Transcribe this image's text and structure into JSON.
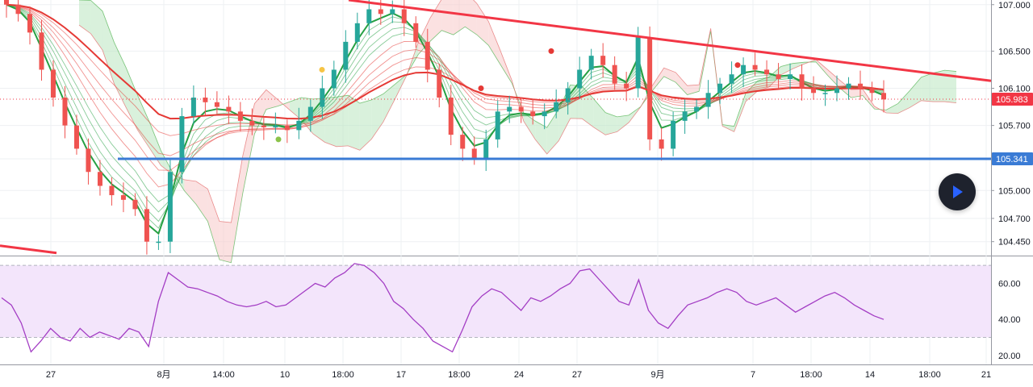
{
  "colors": {
    "up_candle": "#26a69a",
    "down_candle": "#ef5350",
    "ribbon_green": "#26a043",
    "ribbon_red": "#e53935",
    "trendline": "#f23645",
    "support_line": "#3a7bd5",
    "cloud_green": "#b9e6bf",
    "cloud_red": "#f8c9c9",
    "rsi_line": "#a33dc4",
    "rsi_band": "#f3e5fb",
    "price_tag": "#f23645",
    "support_tag": "#3a7bd5",
    "axis_text": "#131722",
    "grid": "#eef0f3"
  },
  "price_axis": {
    "ticks": [
      "107.000",
      "106.500",
      "106.100",
      "105.700",
      "105.341",
      "105.000",
      "104.700",
      "104.450"
    ],
    "current_price_label": "105.983",
    "support_label": "105.341"
  },
  "rsi_axis": {
    "ticks": [
      "60.00",
      "40.00",
      "20.00"
    ],
    "upper_band": 70,
    "lower_band": 30
  },
  "time_axis": {
    "labels": [
      "27",
      "8月",
      "14:00",
      "10",
      "18:00",
      "17",
      "18:00",
      "24",
      "27",
      "9月",
      "7",
      "18:00",
      "14",
      "18:00",
      "21"
    ]
  },
  "play_button": {
    "icon": "play-icon"
  },
  "chart_data": [
    {
      "type": "line",
      "subtype": "candlestick-approximation",
      "y_axis_range": [
        104.3,
        107.05
      ],
      "series": [
        {
          "values": [
            107.0,
            106.9,
            106.7,
            106.3,
            106.0,
            105.7,
            105.45,
            105.2,
            105.05,
            104.95,
            104.9,
            104.8,
            104.45,
            104.45,
            105.2,
            105.8,
            106.0,
            105.95,
            105.9,
            105.85,
            105.75,
            105.7,
            105.68,
            105.7,
            105.65,
            105.75,
            105.9,
            106.1,
            106.3,
            106.6,
            106.8,
            106.95,
            106.9,
            106.95,
            106.8,
            106.6,
            106.3,
            106.0,
            105.6,
            105.45,
            105.35,
            105.55,
            105.85,
            105.9,
            105.85,
            105.8,
            105.85,
            105.95,
            106.1,
            106.3,
            106.45,
            106.35,
            106.15,
            106.1,
            106.65,
            105.55,
            105.45,
            105.75,
            105.85,
            105.9,
            106.05,
            106.15,
            106.25,
            106.35,
            106.3,
            106.25,
            106.2,
            106.25,
            106.1,
            106.05,
            106.05,
            106.1,
            106.15,
            106.1,
            106.05,
            105.98
          ]
        }
      ],
      "annotations": [
        "descending trendline",
        "horizontal support at 105.341",
        "current price 105.983"
      ]
    },
    {
      "type": "line",
      "indicator": "RSI",
      "y_axis_range": [
        15,
        75
      ],
      "series": [
        {
          "values": [
            52,
            48,
            38,
            22,
            28,
            35,
            30,
            28,
            35,
            30,
            33,
            31,
            29,
            35,
            33,
            25,
            50,
            66,
            62,
            58,
            57,
            55,
            53,
            50,
            48,
            47,
            48,
            50,
            47,
            48,
            52,
            56,
            60,
            58,
            63,
            66,
            71,
            70,
            66,
            60,
            50,
            46,
            40,
            35,
            28,
            25,
            22,
            34,
            47,
            53,
            57,
            55,
            50,
            45,
            52,
            50,
            53,
            57,
            60,
            67,
            68,
            62,
            56,
            50,
            48,
            62,
            45,
            38,
            35,
            42,
            48,
            50,
            52,
            55,
            57,
            55,
            50,
            48,
            50,
            52,
            48,
            44,
            47,
            50,
            53,
            55,
            52,
            48,
            45,
            42,
            40
          ]
        }
      ]
    }
  ]
}
